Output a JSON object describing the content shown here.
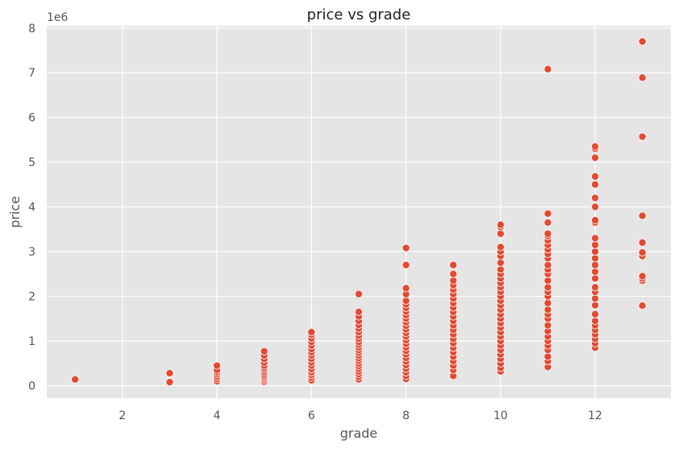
{
  "chart_data": {
    "type": "scatter",
    "title": "price vs grade",
    "xlabel": "grade",
    "ylabel": "price",
    "y_offset_label": "1e6",
    "xlim": [
      0.4,
      13.6
    ],
    "ylim": [
      -0.28,
      8.05
    ],
    "x_ticks": [
      2,
      4,
      6,
      8,
      10,
      12
    ],
    "y_ticks": [
      0,
      1,
      2,
      3,
      4,
      5,
      6,
      7,
      8
    ],
    "grid": true,
    "colors": {
      "plot_bg": "#e5e5e5",
      "grid": "#ffffff",
      "marker": "#e24a33",
      "marker_edge": "#ffffff"
    },
    "series": [
      {
        "points": [
          [
            1,
            0.14
          ],
          [
            3,
            0.08
          ],
          [
            3,
            0.28
          ],
          [
            4,
            0.1
          ],
          [
            4,
            0.15
          ],
          [
            4,
            0.2
          ],
          [
            4,
            0.25
          ],
          [
            4,
            0.3
          ],
          [
            4,
            0.35
          ],
          [
            4,
            0.45
          ],
          [
            5,
            0.09
          ],
          [
            5,
            0.13
          ],
          [
            5,
            0.17
          ],
          [
            5,
            0.21
          ],
          [
            5,
            0.25
          ],
          [
            5,
            0.3
          ],
          [
            5,
            0.35
          ],
          [
            5,
            0.4
          ],
          [
            5,
            0.45
          ],
          [
            5,
            0.52
          ],
          [
            5,
            0.6
          ],
          [
            5,
            0.68
          ],
          [
            5,
            0.77
          ],
          [
            6,
            0.12
          ],
          [
            6,
            0.18
          ],
          [
            6,
            0.24
          ],
          [
            6,
            0.3
          ],
          [
            6,
            0.37
          ],
          [
            6,
            0.45
          ],
          [
            6,
            0.52
          ],
          [
            6,
            0.6
          ],
          [
            6,
            0.68
          ],
          [
            6,
            0.75
          ],
          [
            6,
            0.82
          ],
          [
            6,
            0.9
          ],
          [
            6,
            0.98
          ],
          [
            6,
            1.06
          ],
          [
            6,
            1.14
          ],
          [
            6,
            1.2
          ],
          [
            7,
            0.14
          ],
          [
            7,
            0.2
          ],
          [
            7,
            0.26
          ],
          [
            7,
            0.32
          ],
          [
            7,
            0.38
          ],
          [
            7,
            0.44
          ],
          [
            7,
            0.5
          ],
          [
            7,
            0.56
          ],
          [
            7,
            0.62
          ],
          [
            7,
            0.68
          ],
          [
            7,
            0.74
          ],
          [
            7,
            0.8
          ],
          [
            7,
            0.86
          ],
          [
            7,
            0.92
          ],
          [
            7,
            0.98
          ],
          [
            7,
            1.05
          ],
          [
            7,
            1.12
          ],
          [
            7,
            1.2
          ],
          [
            7,
            1.28
          ],
          [
            7,
            1.36
          ],
          [
            7,
            1.45
          ],
          [
            7,
            1.55
          ],
          [
            7,
            1.65
          ],
          [
            7,
            2.05
          ],
          [
            8,
            0.15
          ],
          [
            8,
            0.22
          ],
          [
            8,
            0.3
          ],
          [
            8,
            0.38
          ],
          [
            8,
            0.46
          ],
          [
            8,
            0.54
          ],
          [
            8,
            0.62
          ],
          [
            8,
            0.7
          ],
          [
            8,
            0.78
          ],
          [
            8,
            0.86
          ],
          [
            8,
            0.94
          ],
          [
            8,
            1.02
          ],
          [
            8,
            1.1
          ],
          [
            8,
            1.18
          ],
          [
            8,
            1.26
          ],
          [
            8,
            1.34
          ],
          [
            8,
            1.42
          ],
          [
            8,
            1.5
          ],
          [
            8,
            1.58
          ],
          [
            8,
            1.66
          ],
          [
            8,
            1.74
          ],
          [
            8,
            1.82
          ],
          [
            8,
            1.9
          ],
          [
            8,
            2.05
          ],
          [
            8,
            2.18
          ],
          [
            8,
            2.7
          ],
          [
            8,
            3.08
          ],
          [
            9,
            0.22
          ],
          [
            9,
            0.35
          ],
          [
            9,
            0.45
          ],
          [
            9,
            0.55
          ],
          [
            9,
            0.65
          ],
          [
            9,
            0.75
          ],
          [
            9,
            0.85
          ],
          [
            9,
            0.95
          ],
          [
            9,
            1.05
          ],
          [
            9,
            1.15
          ],
          [
            9,
            1.25
          ],
          [
            9,
            1.35
          ],
          [
            9,
            1.45
          ],
          [
            9,
            1.55
          ],
          [
            9,
            1.65
          ],
          [
            9,
            1.75
          ],
          [
            9,
            1.85
          ],
          [
            9,
            1.95
          ],
          [
            9,
            2.05
          ],
          [
            9,
            2.15
          ],
          [
            9,
            2.25
          ],
          [
            9,
            2.35
          ],
          [
            9,
            2.5
          ],
          [
            9,
            2.7
          ],
          [
            10,
            0.32
          ],
          [
            10,
            0.4
          ],
          [
            10,
            0.5
          ],
          [
            10,
            0.6
          ],
          [
            10,
            0.7
          ],
          [
            10,
            0.8
          ],
          [
            10,
            0.9
          ],
          [
            10,
            1.0
          ],
          [
            10,
            1.1
          ],
          [
            10,
            1.2
          ],
          [
            10,
            1.3
          ],
          [
            10,
            1.4
          ],
          [
            10,
            1.5
          ],
          [
            10,
            1.6
          ],
          [
            10,
            1.7
          ],
          [
            10,
            1.8
          ],
          [
            10,
            1.9
          ],
          [
            10,
            2.0
          ],
          [
            10,
            2.1
          ],
          [
            10,
            2.2
          ],
          [
            10,
            2.3
          ],
          [
            10,
            2.4
          ],
          [
            10,
            2.5
          ],
          [
            10,
            2.6
          ],
          [
            10,
            2.75
          ],
          [
            10,
            2.9
          ],
          [
            10,
            3.0
          ],
          [
            10,
            3.1
          ],
          [
            10,
            3.4
          ],
          [
            10,
            3.55
          ],
          [
            10,
            3.6
          ],
          [
            11,
            0.42
          ],
          [
            11,
            0.55
          ],
          [
            11,
            0.65
          ],
          [
            11,
            0.8
          ],
          [
            11,
            0.9
          ],
          [
            11,
            1.0
          ],
          [
            11,
            1.1
          ],
          [
            11,
            1.22
          ],
          [
            11,
            1.35
          ],
          [
            11,
            1.5
          ],
          [
            11,
            1.6
          ],
          [
            11,
            1.7
          ],
          [
            11,
            1.85
          ],
          [
            11,
            2.0
          ],
          [
            11,
            2.1
          ],
          [
            11,
            2.2
          ],
          [
            11,
            2.35
          ],
          [
            11,
            2.5
          ],
          [
            11,
            2.6
          ],
          [
            11,
            2.7
          ],
          [
            11,
            2.85
          ],
          [
            11,
            2.95
          ],
          [
            11,
            3.05
          ],
          [
            11,
            3.15
          ],
          [
            11,
            3.25
          ],
          [
            11,
            3.35
          ],
          [
            11,
            3.4
          ],
          [
            11,
            3.65
          ],
          [
            11,
            3.85
          ],
          [
            11,
            7.08
          ],
          [
            12,
            0.85
          ],
          [
            12,
            0.95
          ],
          [
            12,
            1.05
          ],
          [
            12,
            1.15
          ],
          [
            12,
            1.25
          ],
          [
            12,
            1.35
          ],
          [
            12,
            1.45
          ],
          [
            12,
            1.6
          ],
          [
            12,
            1.8
          ],
          [
            12,
            1.95
          ],
          [
            12,
            2.1
          ],
          [
            12,
            2.2
          ],
          [
            12,
            2.4
          ],
          [
            12,
            2.55
          ],
          [
            12,
            2.7
          ],
          [
            12,
            2.85
          ],
          [
            12,
            3.0
          ],
          [
            12,
            3.15
          ],
          [
            12,
            3.3
          ],
          [
            12,
            3.65
          ],
          [
            12,
            3.7
          ],
          [
            12,
            4.0
          ],
          [
            12,
            4.2
          ],
          [
            12,
            4.5
          ],
          [
            12,
            4.68
          ],
          [
            12,
            5.1
          ],
          [
            12,
            5.3
          ],
          [
            12,
            5.35
          ],
          [
            13,
            1.79
          ],
          [
            13,
            2.35
          ],
          [
            13,
            2.4
          ],
          [
            13,
            2.45
          ],
          [
            13,
            2.9
          ],
          [
            13,
            2.98
          ],
          [
            13,
            3.2
          ],
          [
            13,
            3.8
          ],
          [
            13,
            5.57
          ],
          [
            13,
            6.89
          ],
          [
            13,
            7.7
          ]
        ]
      }
    ]
  }
}
